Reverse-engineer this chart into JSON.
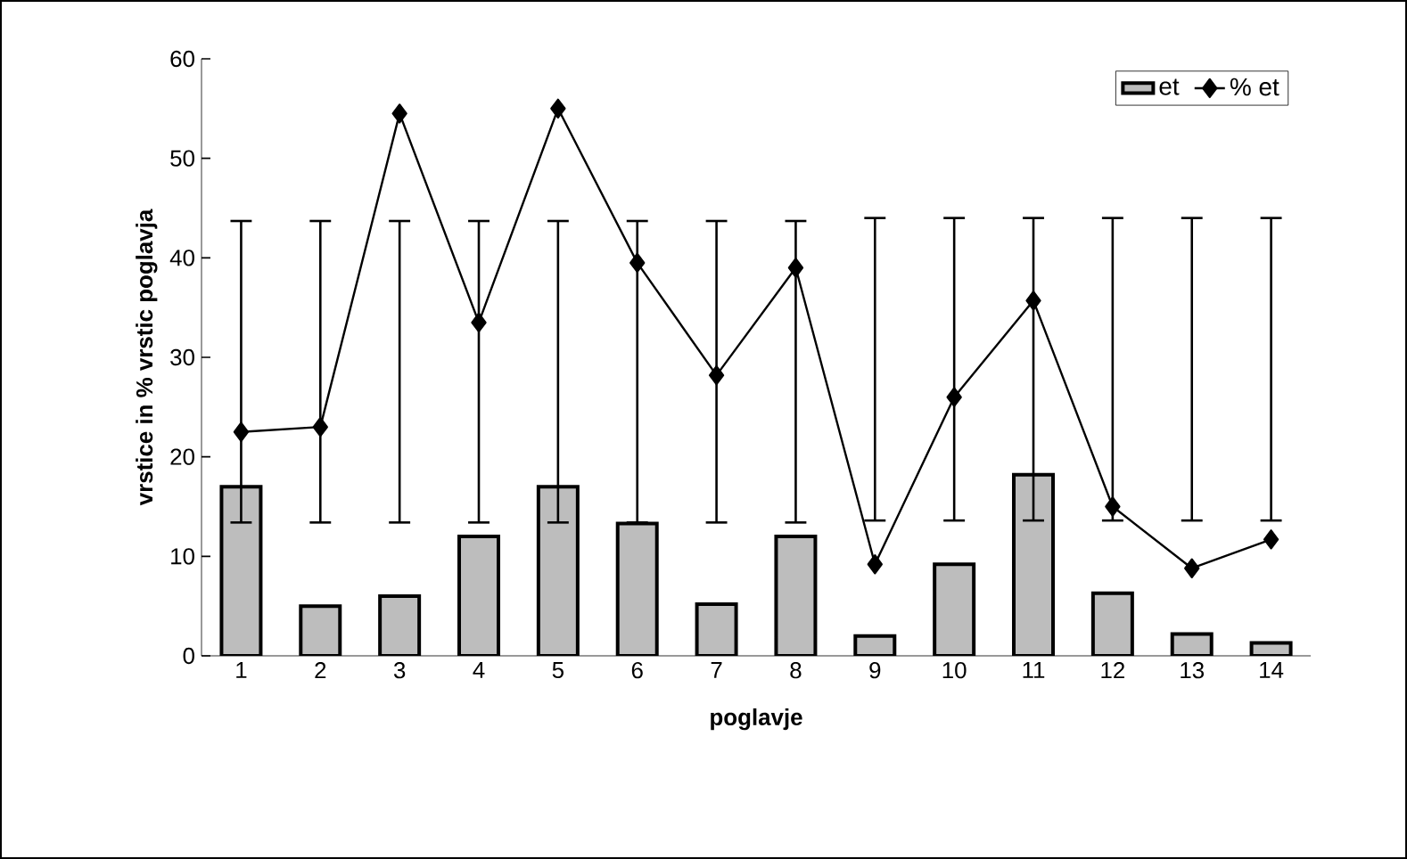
{
  "chart_data": {
    "type": "bar",
    "xlabel": "poglavje",
    "ylabel": "vrstice in % vrstic poglavja",
    "categories": [
      "1",
      "2",
      "3",
      "4",
      "5",
      "6",
      "7",
      "8",
      "9",
      "10",
      "11",
      "12",
      "13",
      "14"
    ],
    "series": [
      {
        "name": "et",
        "type": "bar",
        "color": "#bdbdbd",
        "values": [
          17,
          5,
          6,
          12,
          17,
          13.3,
          5.2,
          12,
          2,
          9.2,
          18.2,
          6.3,
          2.2,
          1.3
        ]
      },
      {
        "name": "% et",
        "type": "line",
        "color": "#000000",
        "marker": "diamond",
        "values": [
          22.5,
          23,
          54.5,
          33.5,
          55,
          39.5,
          28.2,
          39,
          9.2,
          26,
          35.7,
          15,
          8.8,
          11.7
        ],
        "errors": [
          [
            13.4,
            43.7
          ],
          [
            13.4,
            43.7
          ],
          [
            13.4,
            43.7
          ],
          [
            13.4,
            43.7
          ],
          [
            13.4,
            43.7
          ],
          [
            13.4,
            43.7
          ],
          [
            13.4,
            43.7
          ],
          [
            13.4,
            43.7
          ],
          [
            13.6,
            44
          ],
          [
            13.6,
            44
          ],
          [
            13.6,
            44
          ],
          [
            13.6,
            44
          ],
          [
            13.6,
            44
          ],
          [
            13.6,
            44
          ]
        ]
      }
    ],
    "ylim": [
      0,
      60
    ],
    "yticks": [
      0,
      10,
      20,
      30,
      40,
      50,
      60
    ],
    "grid": false,
    "legend": "top right"
  }
}
